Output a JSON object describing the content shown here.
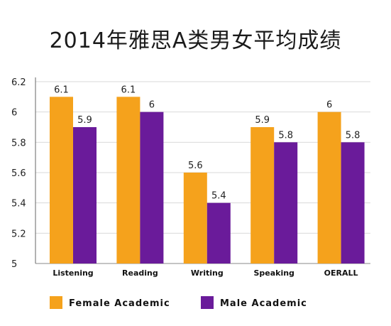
{
  "chart_data": {
    "type": "bar",
    "title": "2014年雅思A类男女平均成绩",
    "xlabel": "",
    "ylabel": "",
    "categories": [
      "Listening",
      "Reading",
      "Writing",
      "Speaking",
      "OERALL"
    ],
    "series": [
      {
        "name": "Female Academic",
        "color": "#f5a21c",
        "values": [
          6.1,
          6.1,
          5.6,
          5.9,
          6.0
        ],
        "labels": [
          "6.1",
          "6.1",
          "5.6",
          "5.9",
          "6"
        ]
      },
      {
        "name": "Male Academic",
        "color": "#6a1b9a",
        "values": [
          5.9,
          6.0,
          5.4,
          5.8,
          5.8
        ],
        "labels": [
          "5.9",
          "6",
          "5.4",
          "5.8",
          "5.8"
        ]
      }
    ],
    "ylim": [
      5,
      6.2
    ],
    "yticks": [
      "5",
      "5.2",
      "5.4",
      "5.6",
      "5.8",
      "6",
      "6.2"
    ],
    "grid": true,
    "legend_position": "bottom"
  }
}
